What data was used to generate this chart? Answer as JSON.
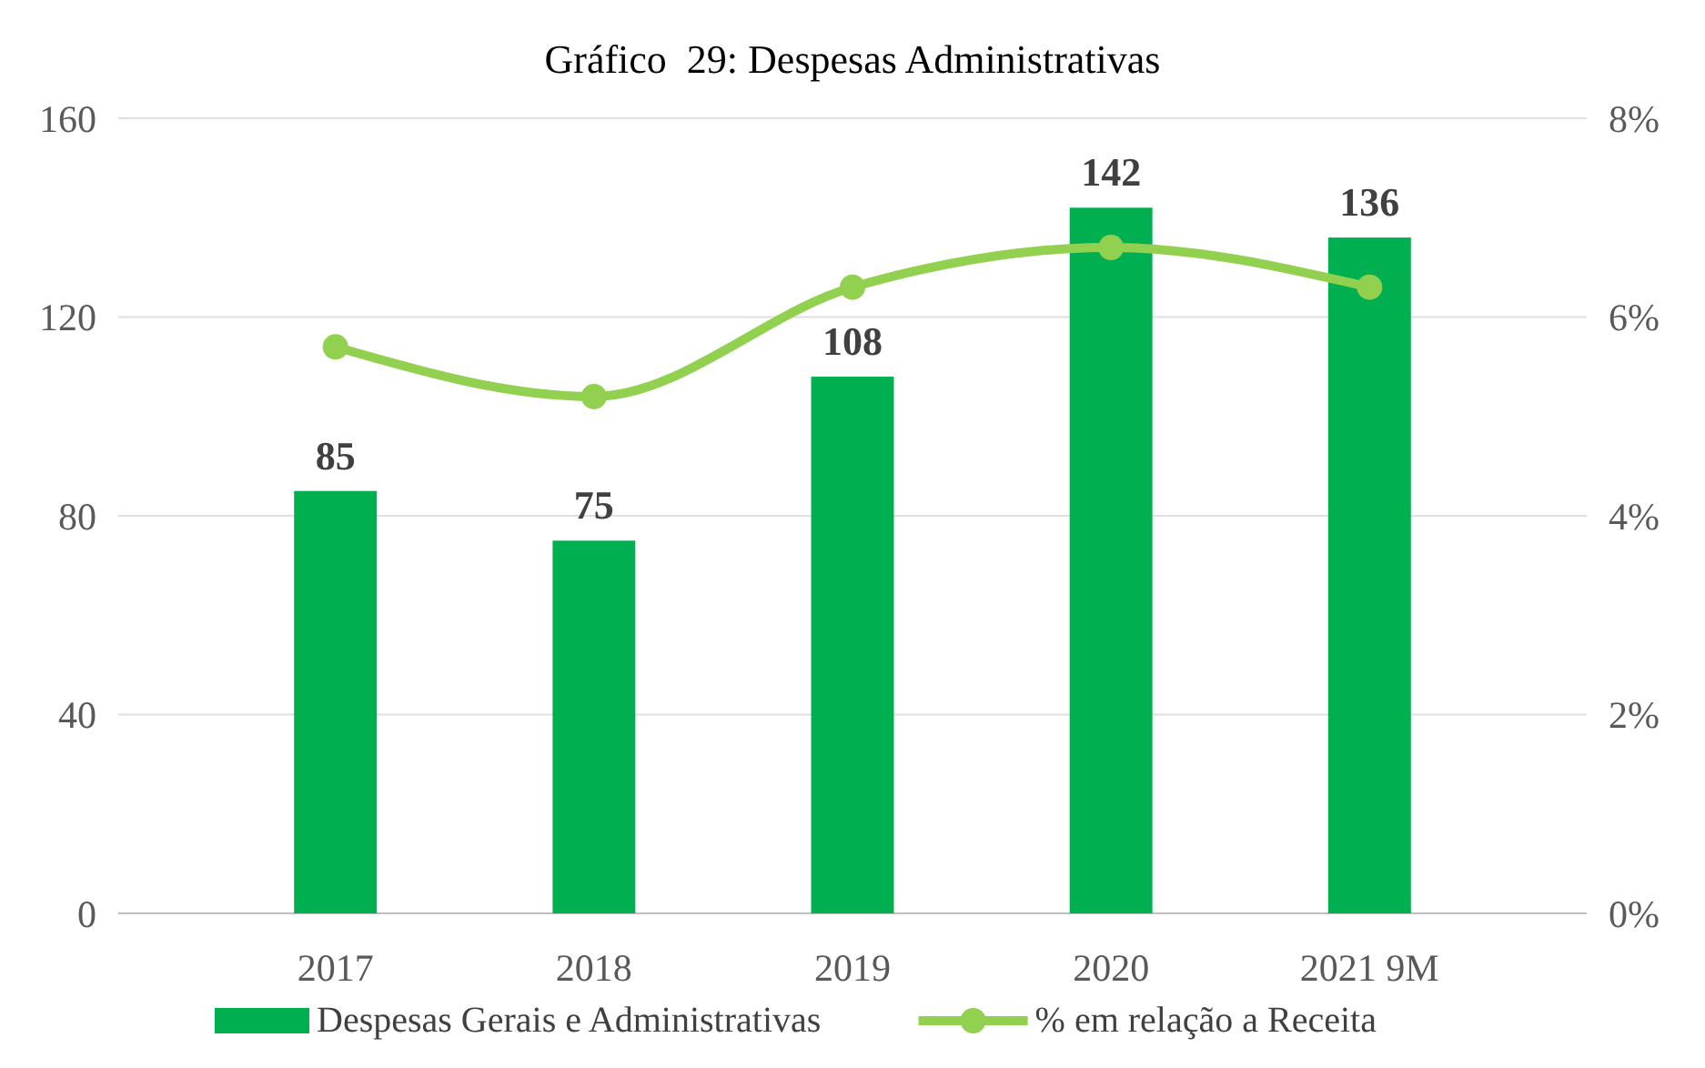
{
  "chart_data": {
    "type": "bar",
    "title": "Gráfico  29: Despesas Administrativas",
    "categories": [
      "2017",
      "2018",
      "2019",
      "2020",
      "2021 9M"
    ],
    "series": [
      {
        "name": "Despesas Gerais e Administrativas",
        "color": "#00b050",
        "values": [
          85,
          75,
          108,
          142,
          136
        ],
        "value_labels": [
          "85",
          "75",
          "108",
          "142",
          "136"
        ]
      },
      {
        "name": "% em relação a Receita",
        "type": "line",
        "axis": "y2",
        "color": "#92d050",
        "values": [
          5.7,
          5.2,
          6.3,
          6.7,
          6.3
        ]
      }
    ],
    "ylim": [
      0,
      160
    ],
    "yticks": [
      0,
      40,
      80,
      120,
      160
    ],
    "y2lim": [
      0,
      8
    ],
    "y2ticks": [
      {
        "value": 0,
        "label": "0%"
      },
      {
        "value": 2,
        "label": "2%"
      },
      {
        "value": 4,
        "label": "4%"
      },
      {
        "value": 6,
        "label": "6%"
      },
      {
        "value": 8,
        "label": "8%"
      }
    ],
    "grid": "y",
    "legend": "bottom",
    "marker": "circle"
  }
}
